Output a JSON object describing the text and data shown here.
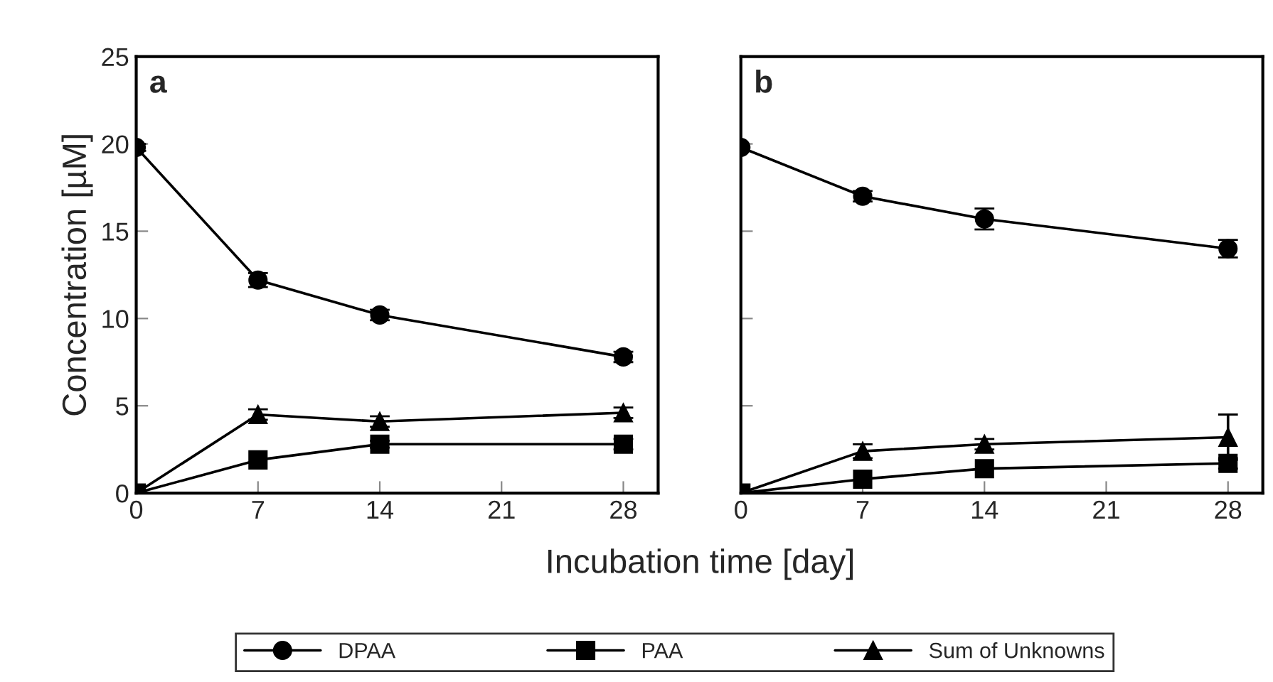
{
  "chart_data": [
    {
      "type": "line",
      "annotations": [
        {
          "text": "a"
        }
      ],
      "xlabel": "Incubation time [day]",
      "ylabel": "Concentration [µM]",
      "x": [
        0,
        7,
        14,
        28
      ],
      "xlim": [
        0,
        30
      ],
      "xticks": [
        0,
        7,
        14,
        21,
        28
      ],
      "ylim": [
        0,
        25
      ],
      "yticks": [
        0,
        5,
        10,
        15,
        20,
        25
      ],
      "legend": "bottom",
      "grid": false,
      "line_style": "solid",
      "series": [
        {
          "name": "DPAA",
          "color": "#000000",
          "marker": "circle",
          "values": [
            19.8,
            12.2,
            10.2,
            7.8
          ],
          "errors": [
            0.2,
            0.4,
            0.3,
            0.3
          ]
        },
        {
          "name": "PAA",
          "color": "#000000",
          "marker": "square",
          "values": [
            0,
            1.9,
            2.8,
            2.8
          ],
          "errors": [
            null,
            null,
            0.2,
            0.3
          ]
        },
        {
          "name": "Sum of Unknowns",
          "color": "#000000",
          "marker": "triangle",
          "values": [
            0,
            4.5,
            4.1,
            4.6
          ],
          "errors": [
            null,
            0.3,
            0.3,
            0.3
          ]
        }
      ]
    },
    {
      "type": "line",
      "annotations": [
        {
          "text": "b"
        }
      ],
      "x": [
        0,
        7,
        14,
        28
      ],
      "xlim": [
        0,
        30
      ],
      "xticks": [
        0,
        7,
        14,
        21,
        28
      ],
      "ylim": [
        0,
        25
      ],
      "yticks": [
        0,
        5,
        10,
        15,
        20,
        25
      ],
      "tick_labels": "x",
      "grid": false,
      "line_style": "solid",
      "series": [
        {
          "color": "#000000",
          "marker": "circle",
          "values": [
            19.8,
            17.0,
            15.7,
            14.0
          ],
          "errors": [
            null,
            0.3,
            0.6,
            0.5
          ]
        },
        {
          "color": "#000000",
          "marker": "square",
          "values": [
            0,
            0.8,
            1.4,
            1.7
          ],
          "errors": [
            null,
            null,
            null,
            0.3
          ]
        },
        {
          "color": "#000000",
          "marker": "triangle",
          "values": [
            0,
            2.4,
            2.8,
            3.2
          ],
          "errors": [
            null,
            0.4,
            0.3,
            1.3
          ]
        }
      ]
    }
  ]
}
